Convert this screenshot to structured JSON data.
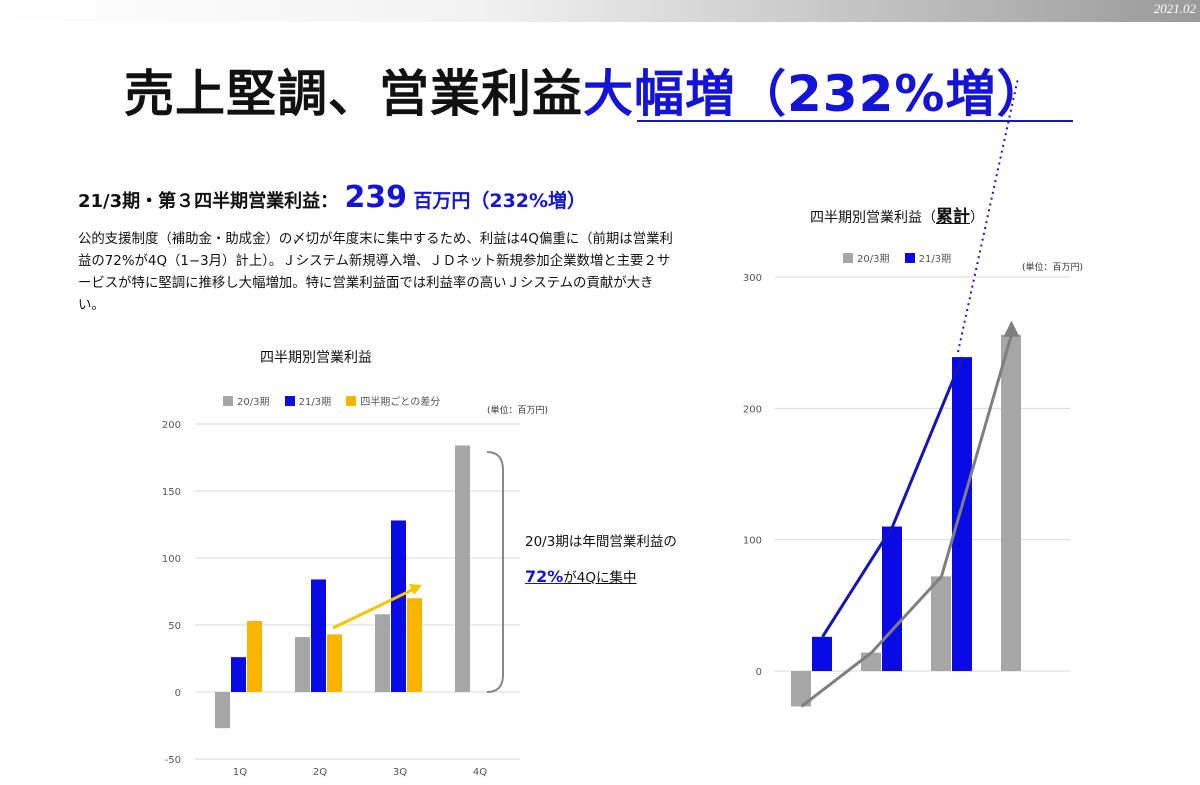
{
  "header": {
    "date": "2021.02"
  },
  "title": {
    "part1": "売上堅調、営業利益",
    "part2": "大幅増（232%増）"
  },
  "subhead": {
    "prefix": "21/3期・第３四半期営業利益：",
    "value": "239",
    "suffix": "百万円（232%増）"
  },
  "body": {
    "text": "公的支援制度（補助金・助成金）の〆切が年度末に集中するため、利益は4Q偏重に（前期は営業利益の72%が4Q（1−3月）計上）。Ｊシステム新規導入増、ＪＤネット新規参加企業数増と主要２サービスが特に堅調に推移し大幅増加。特に営業利益面では利益率の高いＪシステムの貢献が大きい。"
  },
  "colors": {
    "s20": "#a6a6a6",
    "s21": "#0a0ae6",
    "diff": "#f7b500",
    "accent": "#1414d8"
  },
  "note": {
    "line1": "20/3期は年間営業利益の",
    "pct": "72%",
    "line2": "が4Qに集中"
  },
  "chart_data": [
    {
      "type": "bar",
      "title": "四半期別営業利益",
      "unit": "(単位：百万円)",
      "categories": [
        "1Q",
        "2Q",
        "3Q",
        "4Q"
      ],
      "ylim": [
        -50,
        200
      ],
      "yticks": [
        -50,
        0,
        50,
        100,
        150,
        200
      ],
      "grid": true,
      "legend": "top",
      "series": [
        {
          "name": "20/3期",
          "values": [
            -27,
            41,
            58,
            184
          ]
        },
        {
          "name": "21/3期",
          "values": [
            26,
            84,
            128,
            null
          ]
        },
        {
          "name": "四半期ごとの差分",
          "values": [
            53,
            43,
            70,
            null
          ]
        }
      ]
    },
    {
      "type": "bar",
      "title_prefix": "四半期別営業利益（",
      "title_emph": "累計",
      "title_suffix": "）",
      "unit": "(単位：百万円)",
      "categories": [
        "1Q",
        "2Q",
        "3Q",
        "4Q"
      ],
      "ylim": [
        -30,
        300
      ],
      "yticks": [
        0,
        100,
        200,
        300
      ],
      "grid": true,
      "legend": "top",
      "series": [
        {
          "name": "20/3期",
          "values": [
            -27,
            14,
            72,
            256
          ]
        },
        {
          "name": "21/3期",
          "values": [
            26,
            110,
            239,
            null
          ]
        }
      ]
    }
  ]
}
